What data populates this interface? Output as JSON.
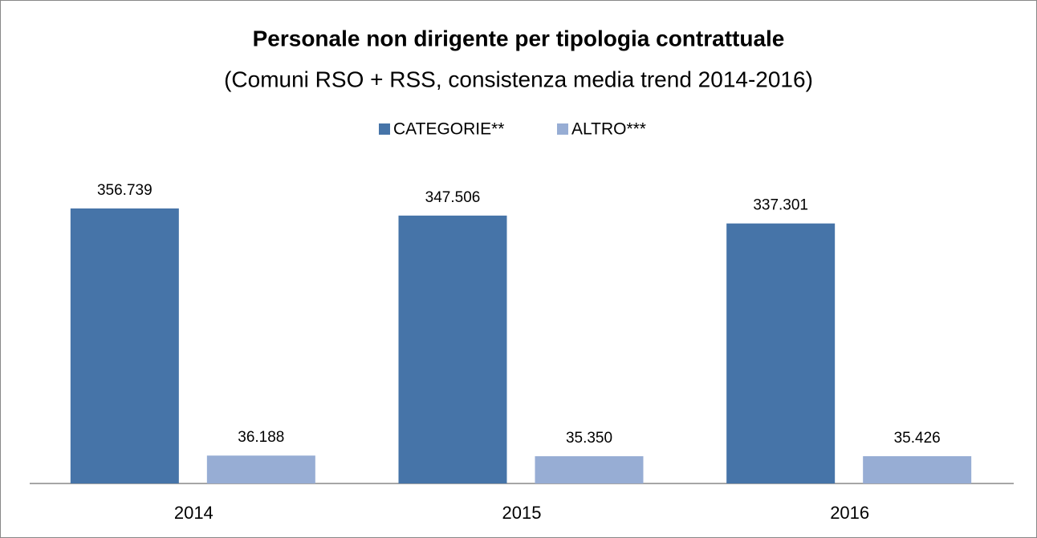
{
  "chart_data": {
    "type": "bar",
    "title": "Personale non dirigente per tipologia contrattuale",
    "subtitle": "(Comuni RSO + RSS, consistenza media trend 2014-2016)",
    "categories": [
      "2014",
      "2015",
      "2016"
    ],
    "series": [
      {
        "name": "CATEGORIE**",
        "color": "#4674a8",
        "values": [
          356739,
          347506,
          337301
        ],
        "value_labels": [
          "356.739",
          "347.506",
          "337.301"
        ]
      },
      {
        "name": "ALTRO***",
        "color": "#97add4",
        "values": [
          36188,
          35350,
          35426
        ],
        "value_labels": [
          "36.188",
          "35.350",
          "35.426"
        ]
      }
    ],
    "ylim": [
      0,
      400000
    ],
    "legend": "top"
  }
}
